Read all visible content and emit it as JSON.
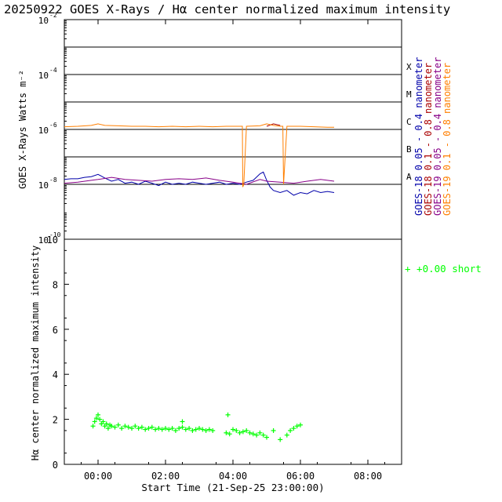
{
  "title": "20250922 GOES X-Rays / Hα center normalized maximum intensity",
  "colors": {
    "goes18_short": "#0000aa",
    "goes18_long": "#aa0000",
    "goes19_short": "#880088",
    "goes19_long": "#ff7f00",
    "halpha": "#00ff00"
  },
  "chart_data": [
    {
      "type": "line",
      "ylabel": "GOES X-Rays Watts m⁻²",
      "yscale": "log",
      "ylim": [
        1e-10,
        0.01
      ],
      "xlim": [
        -1.0,
        9.0
      ],
      "yticks": [
        {
          "value": 1e-10,
          "label": "10",
          "exp": "-10"
        },
        {
          "value": 1e-08,
          "label": "10",
          "exp": "-8"
        },
        {
          "value": 1e-06,
          "label": "10",
          "exp": "-6"
        },
        {
          "value": 0.0001,
          "label": "10",
          "exp": "-4"
        },
        {
          "value": 0.01,
          "label": "10",
          "exp": "-2"
        }
      ],
      "grid_levels": [
        1e-08,
        1e-07,
        1e-06,
        1e-05,
        0.0001,
        0.001
      ],
      "flare_classes": [
        {
          "label": "A",
          "value": 1e-08
        },
        {
          "label": "B",
          "value": 1e-07
        },
        {
          "label": "C",
          "value": 1e-06
        },
        {
          "label": "M",
          "value": 1e-05
        },
        {
          "label": "X",
          "value": 0.0001
        }
      ],
      "series": [
        {
          "name": "GOES-18 0.05 - 0.4 nanometer",
          "color": "#0000aa",
          "x": [
            -1.0,
            -0.8,
            -0.6,
            -0.4,
            -0.2,
            0.0,
            0.2,
            0.4,
            0.6,
            0.8,
            1.0,
            1.2,
            1.4,
            1.6,
            1.8,
            2.0,
            2.2,
            2.4,
            2.6,
            2.8,
            3.0,
            3.2,
            3.4,
            3.6,
            3.8,
            4.0,
            4.2,
            4.4,
            4.6,
            4.8,
            4.9,
            5.0,
            5.1,
            5.2,
            5.4,
            5.6,
            5.8,
            6.0,
            6.2,
            6.4,
            6.6,
            6.8,
            7.0
          ],
          "y": [
            1.5e-08,
            1.6e-08,
            1.6e-08,
            1.8e-08,
            1.9e-08,
            2.3e-08,
            1.7e-08,
            1.3e-08,
            1.5e-08,
            1.1e-08,
            1.2e-08,
            1e-08,
            1.3e-08,
            1.1e-08,
            9e-09,
            1.2e-08,
            1e-08,
            1.1e-08,
            1e-08,
            1.2e-08,
            1.1e-08,
            1e-08,
            1.1e-08,
            1.2e-08,
            1e-08,
            1.1e-08,
            1e-08,
            1.2e-08,
            1.4e-08,
            2.4e-08,
            2.8e-08,
            1.4e-08,
            8e-09,
            6e-09,
            5e-09,
            6e-09,
            4e-09,
            5e-09,
            4.5e-09,
            6e-09,
            5e-09,
            5.5e-09,
            5e-09
          ]
        },
        {
          "name": "GOES-18 0.1 - 0.8 nanometer",
          "color": "#aa0000",
          "x": [
            5.0,
            5.2,
            5.4
          ],
          "y": [
            1.3e-06,
            1.6e-06,
            1.4e-06
          ]
        },
        {
          "name": "GOES-19 0.05 - 0.4 nanometer",
          "color": "#880088",
          "x": [
            -1.0,
            -0.6,
            -0.2,
            0.0,
            0.4,
            0.8,
            1.2,
            1.6,
            2.0,
            2.4,
            2.8,
            3.2,
            3.6,
            4.0,
            4.4,
            4.8,
            5.0,
            5.4,
            5.8,
            6.2,
            6.6,
            7.0
          ],
          "y": [
            1.1e-08,
            1.2e-08,
            1.4e-08,
            1.5e-08,
            1.8e-08,
            1.5e-08,
            1.4e-08,
            1.3e-08,
            1.5e-08,
            1.6e-08,
            1.5e-08,
            1.7e-08,
            1.4e-08,
            1.2e-08,
            1e-08,
            1.5e-08,
            1.3e-08,
            1.2e-08,
            1.1e-08,
            1.3e-08,
            1.5e-08,
            1.3e-08
          ]
        },
        {
          "name": "GOES-19 0.1 - 0.8 nanometer",
          "color": "#ff7f00",
          "x": [
            -1.0,
            -0.6,
            -0.2,
            0.0,
            0.2,
            0.6,
            1.0,
            1.4,
            1.8,
            2.2,
            2.6,
            3.0,
            3.4,
            3.8,
            4.2,
            4.28,
            4.29,
            4.32,
            4.4,
            4.8,
            5.0,
            5.2,
            5.4,
            5.48,
            5.5,
            5.6,
            6.0,
            6.4,
            6.8,
            7.0
          ],
          "y": [
            1.25e-06,
            1.3e-06,
            1.4e-06,
            1.6e-06,
            1.4e-06,
            1.35e-06,
            1.3e-06,
            1.3e-06,
            1.25e-06,
            1.3e-06,
            1.25e-06,
            1.3e-06,
            1.25e-06,
            1.3e-06,
            1.3e-06,
            1.3e-06,
            8e-09,
            1e-08,
            1.3e-06,
            1.35e-06,
            1.6e-06,
            1.4e-06,
            1.3e-06,
            1.3e-06,
            1e-08,
            1.3e-06,
            1.3e-06,
            1.25e-06,
            1.2e-06,
            1.2e-06
          ]
        }
      ]
    },
    {
      "type": "scatter",
      "ylabel": "Hα center normalized maximum intensity",
      "xlabel": "Start Time (21-Sep-25 23:00:00)",
      "ylim": [
        0,
        10
      ],
      "xlim": [
        -1.0,
        9.0
      ],
      "yticks": [
        0,
        2,
        4,
        6,
        8,
        10
      ],
      "xticks": [
        {
          "value": 0,
          "label": "00:00"
        },
        {
          "value": 2,
          "label": "02:00"
        },
        {
          "value": 4,
          "label": "04:00"
        },
        {
          "value": 6,
          "label": "06:00"
        },
        {
          "value": 8,
          "label": "08:00"
        }
      ],
      "series": [
        {
          "name": "+0.00 short",
          "marker": "+",
          "color": "#00ff00",
          "x": [
            -0.15,
            -0.1,
            -0.05,
            0.0,
            0.05,
            0.1,
            0.15,
            0.2,
            0.25,
            0.3,
            0.35,
            0.4,
            0.5,
            0.6,
            0.7,
            0.8,
            0.9,
            1.0,
            1.1,
            1.2,
            1.3,
            1.4,
            1.5,
            1.6,
            1.7,
            1.8,
            1.9,
            2.0,
            2.1,
            2.2,
            2.3,
            2.4,
            2.5,
            2.6,
            2.7,
            2.8,
            2.9,
            3.0,
            3.1,
            3.2,
            3.3,
            3.4,
            3.8,
            3.9,
            4.0,
            4.1,
            4.2,
            4.3,
            4.4,
            4.5,
            4.6,
            4.7,
            4.8,
            4.9,
            5.0,
            5.2,
            5.4,
            5.6,
            5.7,
            5.8,
            5.9,
            6.0,
            2.5,
            3.85
          ],
          "y": [
            1.7,
            1.9,
            2.05,
            2.2,
            2.0,
            1.8,
            1.9,
            1.7,
            1.8,
            1.6,
            1.75,
            1.7,
            1.65,
            1.75,
            1.6,
            1.7,
            1.65,
            1.6,
            1.7,
            1.6,
            1.65,
            1.55,
            1.6,
            1.65,
            1.55,
            1.6,
            1.55,
            1.6,
            1.55,
            1.6,
            1.5,
            1.6,
            1.65,
            1.55,
            1.6,
            1.5,
            1.55,
            1.6,
            1.55,
            1.5,
            1.55,
            1.5,
            1.4,
            1.35,
            1.55,
            1.5,
            1.4,
            1.45,
            1.5,
            1.4,
            1.35,
            1.3,
            1.4,
            1.3,
            1.2,
            1.5,
            1.1,
            1.3,
            1.5,
            1.6,
            1.7,
            1.75,
            1.9,
            2.2
          ]
        }
      ]
    }
  ]
}
